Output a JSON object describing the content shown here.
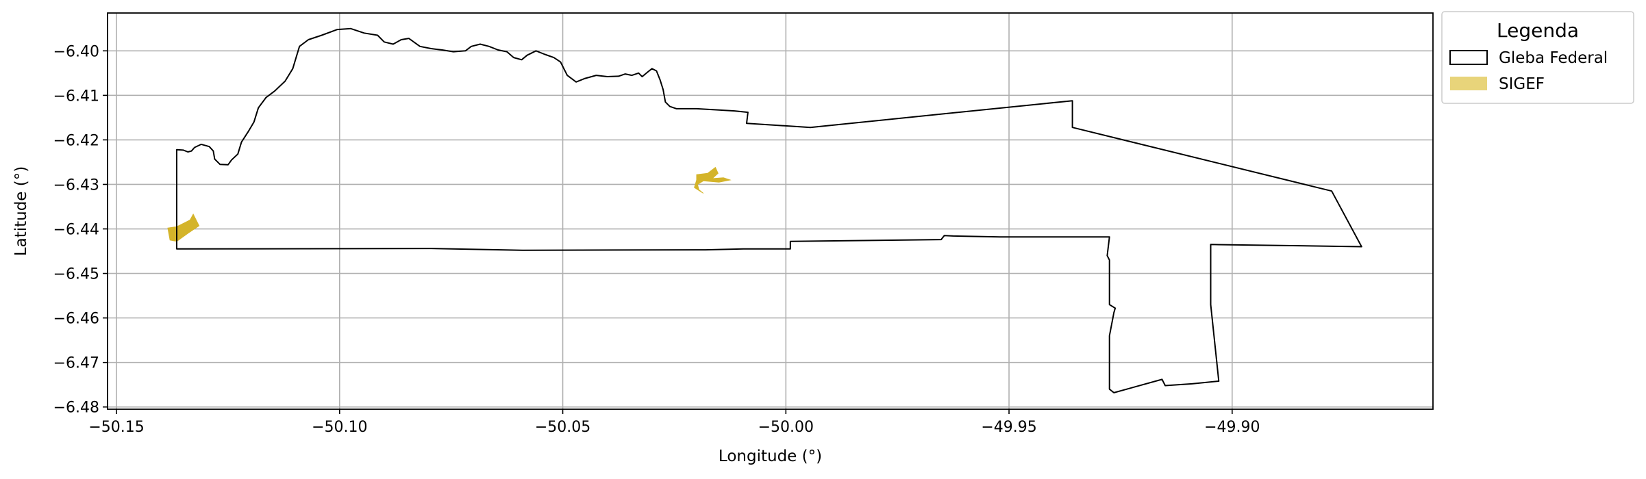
{
  "chart_data": {
    "type": "map",
    "xlabel": "Longitude (°)",
    "ylabel": "Latitude (°)",
    "xlim": [
      -50.152,
      -49.855
    ],
    "ylim": [
      -6.4805,
      -6.3915
    ],
    "xticks": [
      -50.15,
      -50.1,
      -50.05,
      -50.0,
      -49.95,
      -49.9
    ],
    "xtick_labels": [
      "−50.15",
      "−50.10",
      "−50.05",
      "−50.00",
      "−49.95",
      "−49.90"
    ],
    "yticks": [
      -6.4,
      -6.41,
      -6.42,
      -6.43,
      -6.44,
      -6.45,
      -6.46,
      -6.47,
      -6.48
    ],
    "ytick_labels": [
      "−6.40",
      "−6.41",
      "−6.42",
      "−6.43",
      "−6.44",
      "−6.45",
      "−6.46",
      "−6.47",
      "−6.48"
    ],
    "grid": true,
    "legend": {
      "title": "Legenda",
      "placement": "outside-top-right",
      "entries": [
        {
          "label": "Gleba Federal",
          "style": "outline",
          "color": "#000000"
        },
        {
          "label": "SIGEF",
          "style": "fill",
          "color": "#E8D47A"
        }
      ]
    },
    "series": [
      {
        "name": "Gleba Federal",
        "kind": "polygon-outline",
        "color": "#000000",
        "coordinates": [
          [
            -50.1365,
            -6.4445
          ],
          [
            -50.1365,
            -6.4222
          ],
          [
            -50.135,
            -6.4223
          ],
          [
            -50.134,
            -6.4227
          ],
          [
            -50.1332,
            -6.4225
          ],
          [
            -50.1325,
            -6.4217
          ],
          [
            -50.131,
            -6.421
          ],
          [
            -50.1292,
            -6.4215
          ],
          [
            -50.1283,
            -6.4225
          ],
          [
            -50.128,
            -6.4243
          ],
          [
            -50.1268,
            -6.4255
          ],
          [
            -50.125,
            -6.4256
          ],
          [
            -50.1242,
            -6.4245
          ],
          [
            -50.1228,
            -6.4232
          ],
          [
            -50.122,
            -6.4205
          ],
          [
            -50.1205,
            -6.4182
          ],
          [
            -50.1192,
            -6.416
          ],
          [
            -50.1182,
            -6.4128
          ],
          [
            -50.1165,
            -6.4105
          ],
          [
            -50.1145,
            -6.409
          ],
          [
            -50.1122,
            -6.4068
          ],
          [
            -50.1105,
            -6.404
          ],
          [
            -50.109,
            -6.399
          ],
          [
            -50.107,
            -6.3975
          ],
          [
            -50.104,
            -6.3965
          ],
          [
            -50.1005,
            -6.3952
          ],
          [
            -50.0975,
            -6.395
          ],
          [
            -50.0945,
            -6.396
          ],
          [
            -50.0915,
            -6.3965
          ],
          [
            -50.09,
            -6.398
          ],
          [
            -50.088,
            -6.3985
          ],
          [
            -50.0862,
            -6.3975
          ],
          [
            -50.0845,
            -6.3972
          ],
          [
            -50.082,
            -6.399
          ],
          [
            -50.0795,
            -6.3995
          ],
          [
            -50.077,
            -6.3998
          ],
          [
            -50.0745,
            -6.4002
          ],
          [
            -50.0718,
            -6.4
          ],
          [
            -50.0705,
            -6.399
          ],
          [
            -50.0685,
            -6.3985
          ],
          [
            -50.0665,
            -6.399
          ],
          [
            -50.0645,
            -6.3998
          ],
          [
            -50.0625,
            -6.4002
          ],
          [
            -50.061,
            -6.4015
          ],
          [
            -50.0592,
            -6.402
          ],
          [
            -50.058,
            -6.401
          ],
          [
            -50.056,
            -6.4
          ],
          [
            -50.054,
            -6.4008
          ],
          [
            -50.052,
            -6.4015
          ],
          [
            -50.0505,
            -6.4025
          ],
          [
            -50.049,
            -6.4055
          ],
          [
            -50.047,
            -6.407
          ],
          [
            -50.045,
            -6.4062
          ],
          [
            -50.0425,
            -6.4055
          ],
          [
            -50.04,
            -6.4058
          ],
          [
            -50.0375,
            -6.4057
          ],
          [
            -50.036,
            -6.4052
          ],
          [
            -50.0345,
            -6.4055
          ],
          [
            -50.033,
            -6.405
          ],
          [
            -50.0322,
            -6.4058
          ],
          [
            -50.031,
            -6.4048
          ],
          [
            -50.03,
            -6.404
          ],
          [
            -50.029,
            -6.4045
          ],
          [
            -50.0282,
            -6.4065
          ],
          [
            -50.0275,
            -6.4087
          ],
          [
            -50.027,
            -6.4115
          ],
          [
            -50.026,
            -6.4125
          ],
          [
            -50.0245,
            -6.413
          ],
          [
            -50.02,
            -6.413
          ],
          [
            -50.015,
            -6.4133
          ],
          [
            -50.0115,
            -6.4135
          ],
          [
            -50.0085,
            -6.4138
          ],
          [
            -50.0088,
            -6.4163
          ],
          [
            -49.9945,
            -6.4172
          ],
          [
            -49.9358,
            -6.4112
          ],
          [
            -49.9358,
            -6.4172
          ],
          [
            -49.8777,
            -6.4315
          ],
          [
            -49.871,
            -6.444
          ],
          [
            -49.9048,
            -6.4435
          ],
          [
            -49.9048,
            -6.457
          ],
          [
            -49.903,
            -6.4742
          ],
          [
            -49.909,
            -6.4748
          ],
          [
            -49.915,
            -6.4752
          ],
          [
            -49.9157,
            -6.4738
          ],
          [
            -49.9265,
            -6.4768
          ],
          [
            -49.9275,
            -6.476
          ],
          [
            -49.9275,
            -6.464
          ],
          [
            -49.9265,
            -6.4588
          ],
          [
            -49.9262,
            -6.4578
          ],
          [
            -49.9275,
            -6.457
          ],
          [
            -49.9275,
            -6.447
          ],
          [
            -49.928,
            -6.446
          ],
          [
            -49.9275,
            -6.4418
          ],
          [
            -49.952,
            -6.4418
          ],
          [
            -49.9625,
            -6.4416
          ],
          [
            -49.9645,
            -6.4415
          ],
          [
            -49.9652,
            -6.4424
          ],
          [
            -49.999,
            -6.4428
          ],
          [
            -49.999,
            -6.4445
          ],
          [
            -50.0095,
            -6.4445
          ],
          [
            -50.018,
            -6.4447
          ],
          [
            -50.059,
            -6.4448
          ],
          [
            -50.0795,
            -6.4444
          ],
          [
            -50.1365,
            -6.4445
          ]
        ]
      },
      {
        "name": "SIGEF",
        "kind": "polygon-fill",
        "color": "#D4B42A",
        "parcels": [
          [
            [
              -50.1385,
              -6.4398
            ],
            [
              -50.1365,
              -6.4395
            ],
            [
              -50.1345,
              -6.4385
            ],
            [
              -50.1335,
              -6.438
            ],
            [
              -50.1328,
              -6.4367
            ],
            [
              -50.1315,
              -6.4393
            ],
            [
              -50.134,
              -6.441
            ],
            [
              -50.1365,
              -6.4428
            ],
            [
              -50.138,
              -6.4425
            ]
          ],
          [
            [
              -50.02,
              -6.4278
            ],
            [
              -50.0175,
              -6.4275
            ],
            [
              -50.0158,
              -6.4262
            ],
            [
              -50.0152,
              -6.4275
            ],
            [
              -50.0165,
              -6.4287
            ],
            [
              -50.014,
              -6.4285
            ],
            [
              -50.0125,
              -6.429
            ],
            [
              -50.015,
              -6.4295
            ],
            [
              -50.0185,
              -6.4292
            ],
            [
              -50.0198,
              -6.43
            ],
            [
              -50.0195,
              -6.4312
            ],
            [
              -50.0185,
              -6.432
            ],
            [
              -50.0205,
              -6.4307
            ],
            [
              -50.02,
              -6.429
            ]
          ]
        ]
      }
    ]
  }
}
